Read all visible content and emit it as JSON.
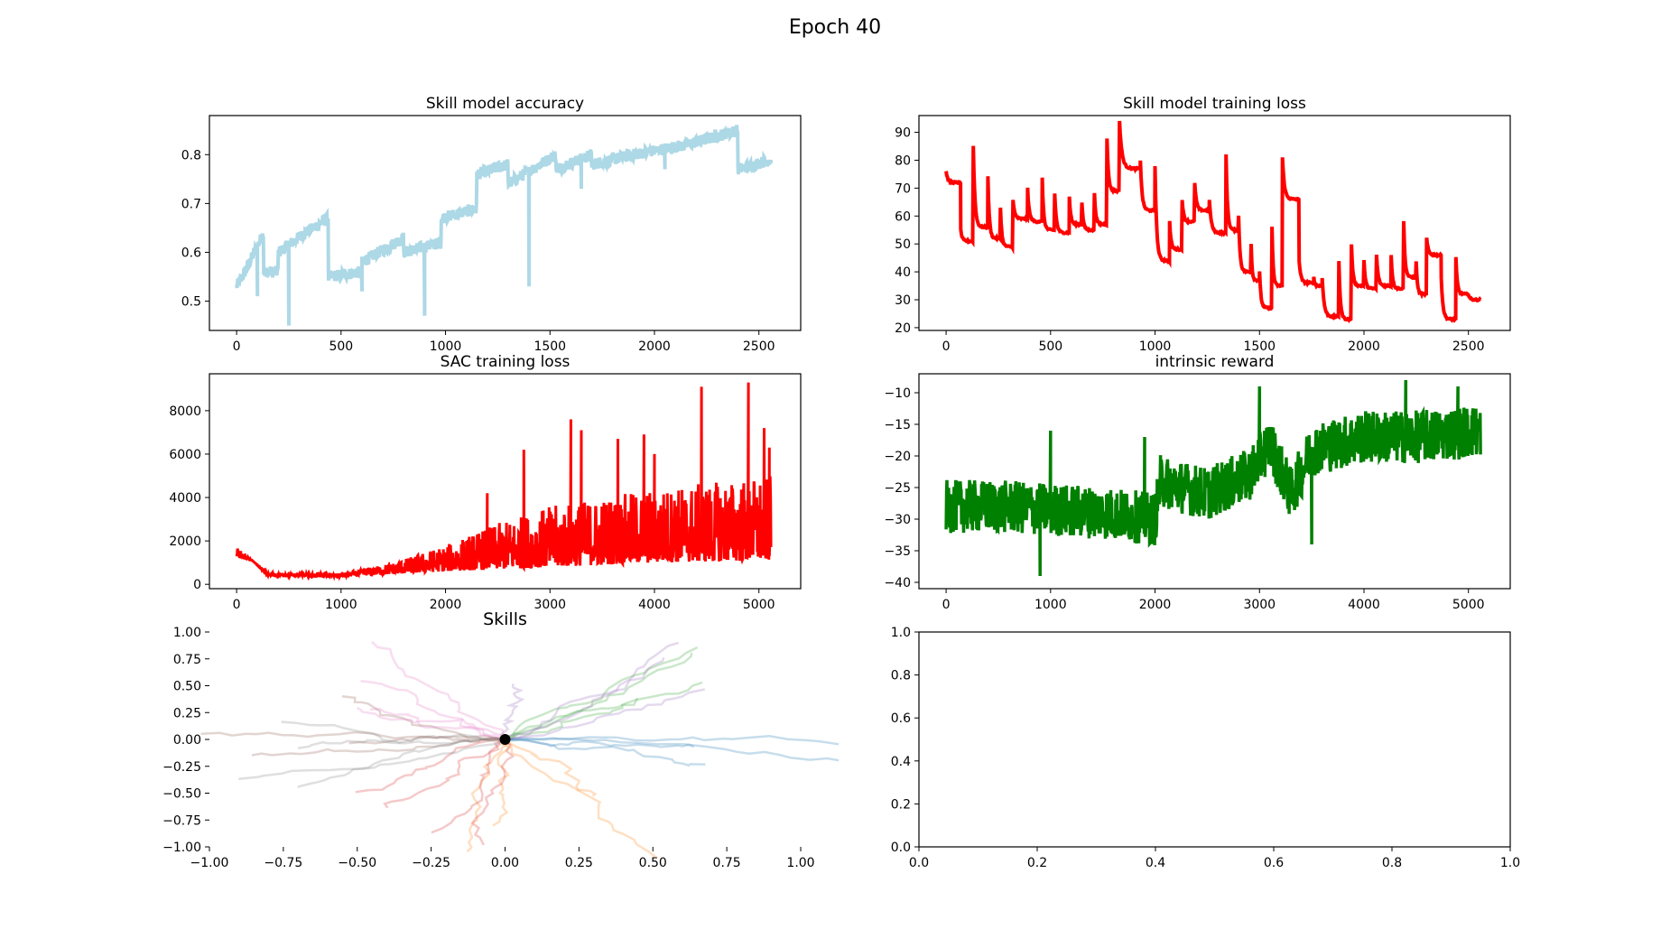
{
  "figure": {
    "suptitle": "Epoch 40"
  },
  "chart_data": [
    {
      "id": "skill_acc",
      "type": "line",
      "title": "Skill model accuracy",
      "xlabel": "",
      "ylabel": "",
      "xlim": [
        -130,
        2700
      ],
      "ylim": [
        0.44,
        0.88
      ],
      "xticks": [
        0,
        500,
        1000,
        1500,
        2000,
        2500
      ],
      "yticks": [
        0.5,
        0.6,
        0.7,
        0.8
      ],
      "tick_labels_y": [
        "0.5",
        "0.6",
        "0.7",
        "0.8"
      ],
      "series": [
        {
          "color": "#add8e6",
          "n": 2560,
          "segments": [
            {
              "start": 0,
              "end": 40,
              "from": 0.53,
              "to": 0.56
            },
            {
              "start": 40,
              "end": 130,
              "from": 0.56,
              "to": 0.64
            },
            {
              "start": 130,
              "end": 200,
              "from": 0.56,
              "to": 0.56
            },
            {
              "start": 200,
              "end": 330,
              "from": 0.6,
              "to": 0.64
            },
            {
              "start": 330,
              "end": 440,
              "from": 0.64,
              "to": 0.67
            },
            {
              "start": 440,
              "end": 600,
              "from": 0.55,
              "to": 0.56
            },
            {
              "start": 600,
              "end": 800,
              "from": 0.58,
              "to": 0.63
            },
            {
              "start": 800,
              "end": 980,
              "from": 0.6,
              "to": 0.62
            },
            {
              "start": 980,
              "end": 1150,
              "from": 0.67,
              "to": 0.69
            },
            {
              "start": 1150,
              "end": 1300,
              "from": 0.76,
              "to": 0.78
            },
            {
              "start": 1300,
              "end": 1530,
              "from": 0.74,
              "to": 0.8
            },
            {
              "start": 1530,
              "end": 1700,
              "from": 0.77,
              "to": 0.8
            },
            {
              "start": 1700,
              "end": 1900,
              "from": 0.78,
              "to": 0.8
            },
            {
              "start": 1900,
              "end": 2150,
              "from": 0.8,
              "to": 0.82
            },
            {
              "start": 2150,
              "end": 2400,
              "from": 0.82,
              "to": 0.85
            },
            {
              "start": 2400,
              "end": 2560,
              "from": 0.77,
              "to": 0.79
            }
          ],
          "noise": 0.012,
          "dips": [
            [
              100,
              0.51
            ],
            [
              250,
              0.45
            ],
            [
              600,
              0.52
            ],
            [
              900,
              0.47
            ],
            [
              1400,
              0.53
            ],
            [
              1650,
              0.73
            ],
            [
              2050,
              0.77
            ]
          ]
        }
      ]
    },
    {
      "id": "skill_loss",
      "type": "line",
      "title": "Skill model training loss",
      "xlabel": "",
      "ylabel": "",
      "xlim": [
        -130,
        2700
      ],
      "ylim": [
        19,
        96
      ],
      "xticks": [
        0,
        500,
        1000,
        1500,
        2000,
        2500
      ],
      "yticks": [
        20,
        30,
        40,
        50,
        60,
        70,
        80,
        90
      ],
      "series": [
        {
          "color": "#ff0000",
          "n": 2560,
          "sawtooth": [
            [
              0,
              76,
              72
            ],
            [
              70,
              55,
              51
            ],
            [
              130,
              85,
              56
            ],
            [
              200,
              74,
              52
            ],
            [
              260,
              63,
              49
            ],
            [
              320,
              66,
              59
            ],
            [
              390,
              70,
              58
            ],
            [
              460,
              74,
              55
            ],
            [
              520,
              68,
              54
            ],
            [
              590,
              67,
              57
            ],
            [
              650,
              65,
              55
            ],
            [
              710,
              68,
              57
            ],
            [
              770,
              88,
              69
            ],
            [
              830,
              94,
              77
            ],
            [
              930,
              80,
              62
            ],
            [
              1000,
              78,
              44
            ],
            [
              1070,
              58,
              48
            ],
            [
              1130,
              66,
              58
            ],
            [
              1190,
              72,
              62
            ],
            [
              1260,
              66,
              54
            ],
            [
              1340,
              82,
              55
            ],
            [
              1400,
              60,
              40
            ],
            [
              1460,
              50,
              37
            ],
            [
              1500,
              40,
              27
            ],
            [
              1560,
              56,
              35
            ],
            [
              1610,
              81,
              66
            ],
            [
              1690,
              44,
              36
            ],
            [
              1760,
              38,
              35
            ],
            [
              1800,
              38,
              24
            ],
            [
              1880,
              44,
              23
            ],
            [
              1940,
              50,
              35
            ],
            [
              2000,
              44,
              34
            ],
            [
              2060,
              46,
              35
            ],
            [
              2130,
              46,
              34
            ],
            [
              2190,
              58,
              38
            ],
            [
              2250,
              44,
              32
            ],
            [
              2300,
              52,
              46
            ],
            [
              2370,
              38,
              23
            ],
            [
              2440,
              45,
              32
            ],
            [
              2500,
              32,
              30
            ]
          ]
        }
      ]
    },
    {
      "id": "sac_loss",
      "type": "line",
      "title": "SAC training loss",
      "xlabel": "",
      "ylabel": "",
      "xlim": [
        -260,
        5400
      ],
      "ylim": [
        -200,
        9700
      ],
      "xticks": [
        0,
        1000,
        2000,
        3000,
        4000,
        5000
      ],
      "yticks": [
        0,
        2000,
        4000,
        6000,
        8000
      ],
      "series": [
        {
          "color": "#ff0000",
          "n": 5120,
          "baseline": [
            [
              0,
              1300
            ],
            [
              150,
              1100
            ],
            [
              300,
              400
            ],
            [
              1000,
              350
            ],
            [
              2000,
              600
            ],
            [
              3000,
              800
            ],
            [
              4000,
              1000
            ],
            [
              5120,
              1100
            ]
          ],
          "envelope": [
            [
              0,
              1700
            ],
            [
              300,
              500
            ],
            [
              1000,
              500
            ],
            [
              1500,
              1000
            ],
            [
              2000,
              1800
            ],
            [
              2500,
              2800
            ],
            [
              3000,
              3600
            ],
            [
              4000,
              4400
            ],
            [
              5120,
              5000
            ]
          ],
          "spikes": [
            [
              2400,
              4200
            ],
            [
              2750,
              6200
            ],
            [
              3200,
              7600
            ],
            [
              3300,
              7100
            ],
            [
              3650,
              6700
            ],
            [
              3900,
              6900
            ],
            [
              4000,
              6000
            ],
            [
              4450,
              9100
            ],
            [
              4900,
              9300
            ],
            [
              5050,
              7200
            ],
            [
              5100,
              6300
            ]
          ]
        }
      ]
    },
    {
      "id": "intrinsic_reward",
      "type": "line",
      "title": "intrinsic reward",
      "xlabel": "",
      "ylabel": "",
      "xlim": [
        -260,
        5400
      ],
      "ylim": [
        -41,
        -7
      ],
      "xticks": [
        0,
        1000,
        2000,
        3000,
        4000,
        5000
      ],
      "yticks": [
        -40,
        -35,
        -30,
        -25,
        -20,
        -15,
        -10
      ],
      "tick_labels_y": [
        "−40",
        "−35",
        "−30",
        "−25",
        "−20",
        "−15",
        "−10"
      ],
      "series": [
        {
          "color": "#008000",
          "n": 5120,
          "mean": [
            [
              0,
              -28
            ],
            [
              500,
              -28
            ],
            [
              1000,
              -28.5
            ],
            [
              1500,
              -29
            ],
            [
              2000,
              -30
            ],
            [
              2050,
              -24
            ],
            [
              2500,
              -26
            ],
            [
              2900,
              -23
            ],
            [
              3100,
              -18
            ],
            [
              3300,
              -26
            ],
            [
              3500,
              -19
            ],
            [
              4000,
              -17
            ],
            [
              4500,
              -17
            ],
            [
              5120,
              -16
            ]
          ],
          "amplitude": 6,
          "spikes": [
            [
              900,
              -39
            ],
            [
              1000,
              -16
            ],
            [
              1900,
              -17
            ],
            [
              3000,
              -9
            ],
            [
              3500,
              -34
            ],
            [
              4400,
              -8
            ],
            [
              4900,
              -9
            ]
          ]
        }
      ]
    },
    {
      "id": "skills",
      "type": "line",
      "title": "Skills",
      "xlabel": "",
      "ylabel": "",
      "xlim": [
        -1.0,
        1.0
      ],
      "ylim": [
        -1.0,
        1.0
      ],
      "xticks": [
        -1.0,
        -0.75,
        -0.5,
        -0.25,
        0.0,
        0.25,
        0.5,
        0.75,
        1.0
      ],
      "tick_labels_x": [
        "−1.00",
        "−0.75",
        "−0.50",
        "−0.25",
        "0.00",
        "0.25",
        "0.50",
        "0.75",
        "1.00"
      ],
      "yticks": [
        -1.0,
        -0.75,
        -0.5,
        -0.25,
        0.0,
        0.25,
        0.5,
        0.75,
        1.0
      ],
      "tick_labels_y": [
        "−1.00",
        "−0.75",
        "−0.50",
        "−0.25",
        "0.00",
        "0.25",
        "0.50",
        "0.75",
        "1.00"
      ],
      "start_point": [
        0.0,
        0.0
      ],
      "start_color": "#000000",
      "skill_colors": [
        "#1f77b4",
        "#ff7f0e",
        "#2ca02c",
        "#d62728",
        "#9467bd",
        "#8c564b",
        "#e377c2",
        "#7f7f7f"
      ],
      "skill_directions": [
        [
          0.55,
          -0.05
        ],
        [
          0.05,
          -0.6
        ],
        [
          0.45,
          0.45
        ],
        [
          -0.15,
          -0.55
        ],
        [
          0.25,
          0.6
        ],
        [
          -0.55,
          0.15
        ],
        [
          -0.3,
          0.55
        ],
        [
          -0.6,
          -0.1
        ]
      ]
    },
    {
      "id": "empty",
      "type": "line",
      "title": "",
      "xlabel": "",
      "ylabel": "",
      "xlim": [
        0.0,
        1.0
      ],
      "ylim": [
        0.0,
        1.0
      ],
      "xticks": [
        0.0,
        0.2,
        0.4,
        0.6,
        0.8,
        1.0
      ],
      "tick_labels_x": [
        "0.0",
        "0.2",
        "0.4",
        "0.6",
        "0.8",
        "1.0"
      ],
      "yticks": [
        0.0,
        0.2,
        0.4,
        0.6,
        0.8,
        1.0
      ],
      "tick_labels_y": [
        "0.0",
        "0.2",
        "0.4",
        "0.6",
        "0.8",
        "1.0"
      ],
      "series": []
    }
  ]
}
